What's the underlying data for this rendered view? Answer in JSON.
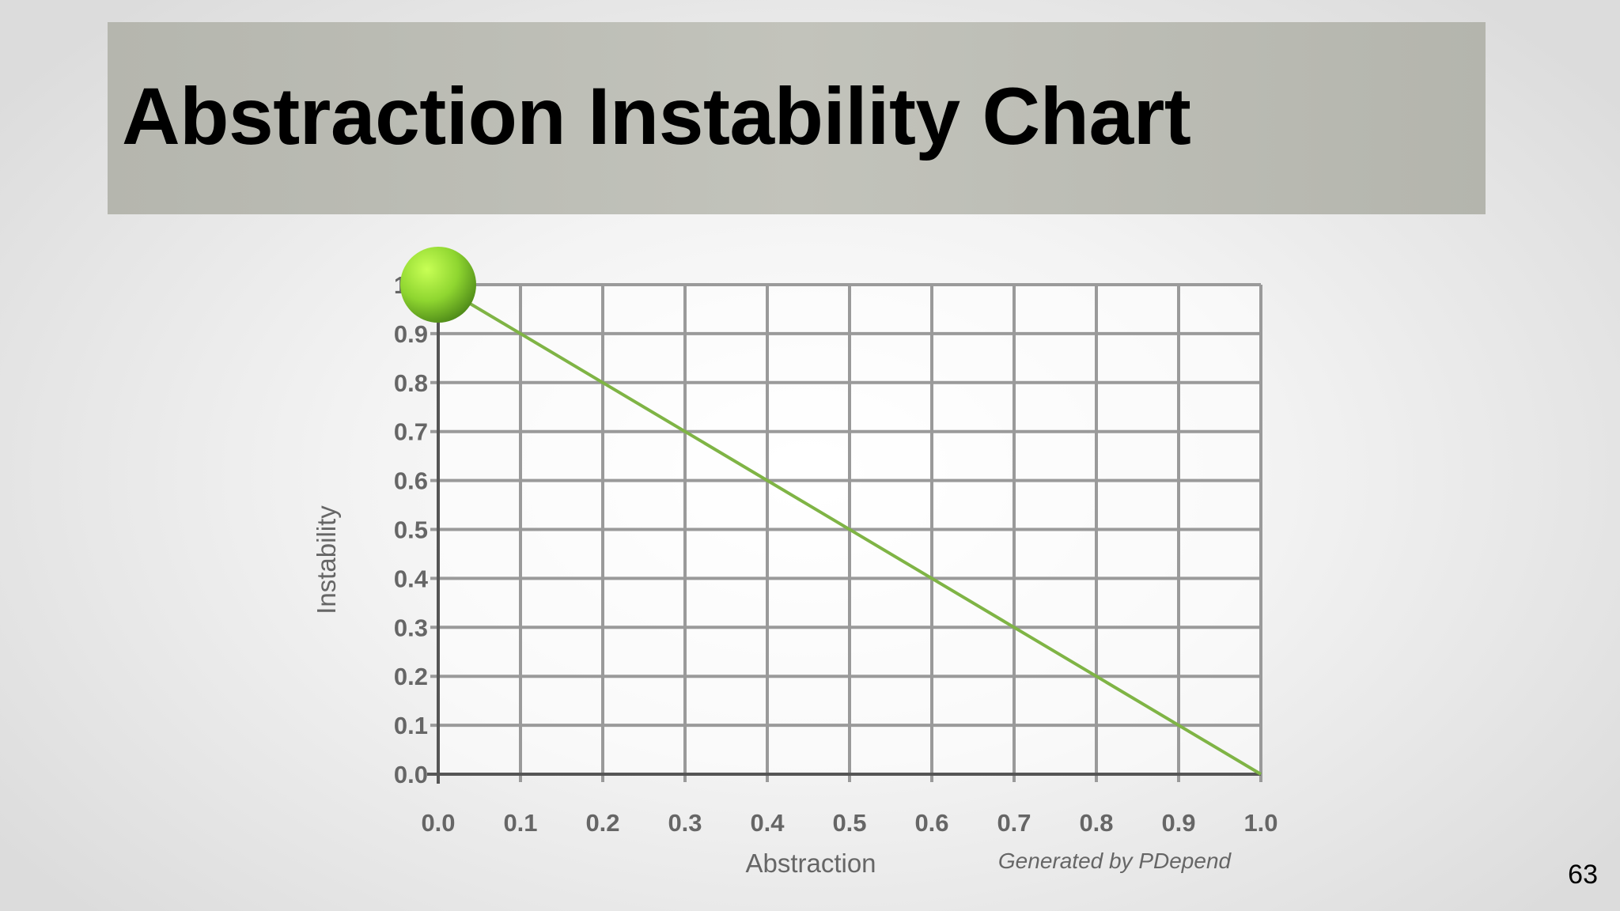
{
  "slide": {
    "title": "Abstraction Instability Chart",
    "number": "63"
  },
  "colors": {
    "grid": "#9a9a9a",
    "axis": "#555555",
    "main_sequence": "#7fb445",
    "point_light": "#b8f247",
    "point_dark": "#5a9a1a"
  },
  "chart_data": {
    "type": "scatter",
    "xlabel": "Abstraction",
    "ylabel": "Instability",
    "credit": "Generated by PDepend",
    "xlim": [
      0,
      1
    ],
    "ylim": [
      0,
      1
    ],
    "x_ticks": [
      "0.0",
      "0.1",
      "0.2",
      "0.3",
      "0.4",
      "0.5",
      "0.6",
      "0.7",
      "0.8",
      "0.9",
      "1.0"
    ],
    "y_ticks": [
      "0.0",
      "0.1",
      "0.2",
      "0.3",
      "0.4",
      "0.5",
      "0.6",
      "0.7",
      "0.8",
      "0.9",
      "1.0"
    ],
    "grid": true,
    "reference_line": {
      "from": [
        0,
        1
      ],
      "to": [
        1,
        0
      ]
    },
    "points": [
      {
        "x": 0.0,
        "y": 1.0
      }
    ]
  }
}
